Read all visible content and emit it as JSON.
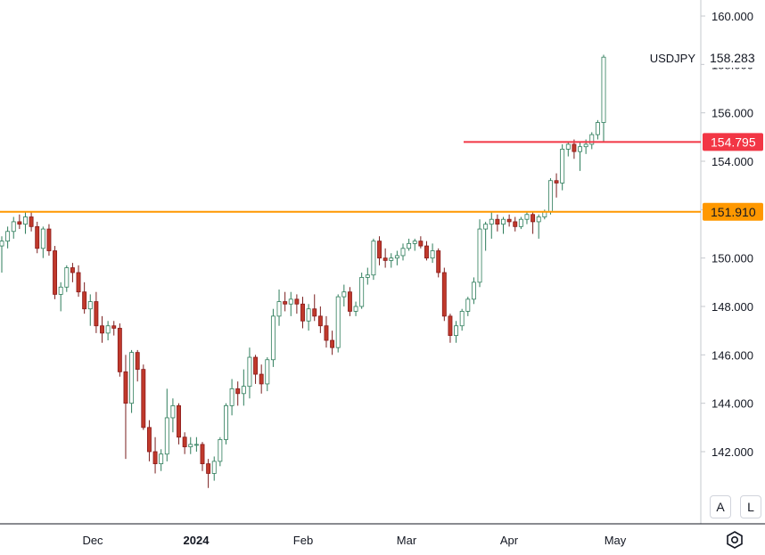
{
  "chart_data": {
    "type": "candlestick",
    "symbol": "USDJPY",
    "last_price": "158.283",
    "y_axis": {
      "min": 140.0,
      "max": 160.5,
      "ticks": [
        "160.000",
        "158.000",
        "156.000",
        "154.000",
        "152.000",
        "150.000",
        "148.000",
        "146.000",
        "144.000",
        "142.000"
      ]
    },
    "x_axis": {
      "labels": [
        {
          "text": "Dec",
          "bold": false
        },
        {
          "text": "2024",
          "bold": true
        },
        {
          "text": "Feb",
          "bold": false
        },
        {
          "text": "Mar",
          "bold": false
        },
        {
          "text": "Apr",
          "bold": false
        },
        {
          "text": "May",
          "bold": false
        }
      ]
    },
    "levels": [
      {
        "value": 151.91,
        "label": "151.910",
        "color": "#ff9800",
        "span": "full"
      },
      {
        "value": 154.795,
        "label": "154.795",
        "color": "#f23645",
        "span": "partial"
      }
    ],
    "colors": {
      "up": "#ffffff",
      "up_border": "#2e7d5b",
      "down": "#c0392b",
      "down_border": "#8b1a1a"
    },
    "candles": [
      [
        150.5,
        150.9,
        149.4,
        150.7
      ],
      [
        150.7,
        151.3,
        150.4,
        151.1
      ],
      [
        151.1,
        151.7,
        150.8,
        151.5
      ],
      [
        151.5,
        151.8,
        151.2,
        151.4
      ],
      [
        151.4,
        151.9,
        151.0,
        151.7
      ],
      [
        151.7,
        151.9,
        151.1,
        151.3
      ],
      [
        151.3,
        151.5,
        150.2,
        150.4
      ],
      [
        150.4,
        151.3,
        150.0,
        151.2
      ],
      [
        151.2,
        151.4,
        150.1,
        150.3
      ],
      [
        150.3,
        150.5,
        148.3,
        148.5
      ],
      [
        148.5,
        149.0,
        147.8,
        148.8
      ],
      [
        148.8,
        149.7,
        148.6,
        149.6
      ],
      [
        149.6,
        149.8,
        149.0,
        149.4
      ],
      [
        149.4,
        149.7,
        148.4,
        148.6
      ],
      [
        148.6,
        149.0,
        147.7,
        147.9
      ],
      [
        147.9,
        148.5,
        147.2,
        148.2
      ],
      [
        148.2,
        148.6,
        146.9,
        147.2
      ],
      [
        147.2,
        147.6,
        146.5,
        146.9
      ],
      [
        146.9,
        147.4,
        146.6,
        147.2
      ],
      [
        147.2,
        147.4,
        146.8,
        147.1
      ],
      [
        147.1,
        147.3,
        145.1,
        145.3
      ],
      [
        145.3,
        146.0,
        141.7,
        144.0
      ],
      [
        144.0,
        146.2,
        143.6,
        146.1
      ],
      [
        146.1,
        146.2,
        144.9,
        145.4
      ],
      [
        145.4,
        145.6,
        142.9,
        143.0
      ],
      [
        143.0,
        143.3,
        141.6,
        142.0
      ],
      [
        142.0,
        142.6,
        141.1,
        141.5
      ],
      [
        141.5,
        142.1,
        141.2,
        141.9
      ],
      [
        141.9,
        144.6,
        141.6,
        143.4
      ],
      [
        143.4,
        144.2,
        142.8,
        143.9
      ],
      [
        143.9,
        144.0,
        142.3,
        142.6
      ],
      [
        142.6,
        142.8,
        141.9,
        142.2
      ],
      [
        142.2,
        142.6,
        141.9,
        142.3
      ],
      [
        142.3,
        142.6,
        142.0,
        142.3
      ],
      [
        142.3,
        142.4,
        141.2,
        141.5
      ],
      [
        141.5,
        141.7,
        140.5,
        141.1
      ],
      [
        141.1,
        141.8,
        140.8,
        141.6
      ],
      [
        141.6,
        142.6,
        141.4,
        142.5
      ],
      [
        142.5,
        144.0,
        142.3,
        143.9
      ],
      [
        143.9,
        145.0,
        143.5,
        144.6
      ],
      [
        144.6,
        144.9,
        143.9,
        144.4
      ],
      [
        144.4,
        145.4,
        143.9,
        144.7
      ],
      [
        144.7,
        146.3,
        144.2,
        145.9
      ],
      [
        145.9,
        146.0,
        144.8,
        145.2
      ],
      [
        145.2,
        145.6,
        144.4,
        144.8
      ],
      [
        144.8,
        145.9,
        144.5,
        145.8
      ],
      [
        145.8,
        147.9,
        145.5,
        147.6
      ],
      [
        147.6,
        148.7,
        147.2,
        148.2
      ],
      [
        148.2,
        148.6,
        147.8,
        148.1
      ],
      [
        148.1,
        148.6,
        147.6,
        148.3
      ],
      [
        148.3,
        148.5,
        147.7,
        148.1
      ],
      [
        148.1,
        148.4,
        147.1,
        147.4
      ],
      [
        147.4,
        148.1,
        147.0,
        147.9
      ],
      [
        147.9,
        148.5,
        147.4,
        147.6
      ],
      [
        147.6,
        148.0,
        146.9,
        147.2
      ],
      [
        147.2,
        147.6,
        146.3,
        146.6
      ],
      [
        146.6,
        147.0,
        146.0,
        146.3
      ],
      [
        146.3,
        148.5,
        146.1,
        148.4
      ],
      [
        148.4,
        148.9,
        148.0,
        148.6
      ],
      [
        148.6,
        148.8,
        147.6,
        147.8
      ],
      [
        147.8,
        148.2,
        147.6,
        148.0
      ],
      [
        148.0,
        149.4,
        147.9,
        149.2
      ],
      [
        149.2,
        149.6,
        148.9,
        149.3
      ],
      [
        149.3,
        150.8,
        149.1,
        150.7
      ],
      [
        150.7,
        150.9,
        149.7,
        150.0
      ],
      [
        150.0,
        150.4,
        149.6,
        149.9
      ],
      [
        149.9,
        150.2,
        149.6,
        150.0
      ],
      [
        150.0,
        150.3,
        149.7,
        150.1
      ],
      [
        150.1,
        150.6,
        149.9,
        150.4
      ],
      [
        150.4,
        150.8,
        150.3,
        150.6
      ],
      [
        150.6,
        150.8,
        150.3,
        150.7
      ],
      [
        150.7,
        150.9,
        150.4,
        150.5
      ],
      [
        150.5,
        150.7,
        149.9,
        150.0
      ],
      [
        150.0,
        150.6,
        149.8,
        150.3
      ],
      [
        150.3,
        150.4,
        149.2,
        149.4
      ],
      [
        149.4,
        149.6,
        147.4,
        147.6
      ],
      [
        147.6,
        147.7,
        146.5,
        146.8
      ],
      [
        146.8,
        147.4,
        146.5,
        147.2
      ],
      [
        147.2,
        147.9,
        147.0,
        147.8
      ],
      [
        147.8,
        148.4,
        147.6,
        148.3
      ],
      [
        148.3,
        149.2,
        148.1,
        149.0
      ],
      [
        149.0,
        151.6,
        148.8,
        151.2
      ],
      [
        151.2,
        151.5,
        150.3,
        151.4
      ],
      [
        151.4,
        151.9,
        150.8,
        151.6
      ],
      [
        151.6,
        151.8,
        151.1,
        151.4
      ],
      [
        151.4,
        151.7,
        151.0,
        151.6
      ],
      [
        151.6,
        151.8,
        151.3,
        151.5
      ],
      [
        151.5,
        151.7,
        151.1,
        151.3
      ],
      [
        151.3,
        151.7,
        151.2,
        151.6
      ],
      [
        151.6,
        151.9,
        151.4,
        151.8
      ],
      [
        151.8,
        151.9,
        151.0,
        151.5
      ],
      [
        151.5,
        151.8,
        150.8,
        151.7
      ],
      [
        151.7,
        152.0,
        151.6,
        151.9
      ],
      [
        151.9,
        153.3,
        151.8,
        153.2
      ],
      [
        153.2,
        153.5,
        152.5,
        153.1
      ],
      [
        153.1,
        154.7,
        152.8,
        154.5
      ],
      [
        154.5,
        154.8,
        154.2,
        154.7
      ],
      [
        154.7,
        154.9,
        154.1,
        154.4
      ],
      [
        154.4,
        154.8,
        153.6,
        154.6
      ],
      [
        154.6,
        154.9,
        154.3,
        154.7
      ],
      [
        154.7,
        155.2,
        154.5,
        155.1
      ],
      [
        155.1,
        155.7,
        154.9,
        155.6
      ],
      [
        155.6,
        158.4,
        154.8,
        158.3
      ]
    ]
  },
  "controls": {
    "auto_label": "A",
    "log_label": "L",
    "settings_icon": "gear-icon"
  }
}
